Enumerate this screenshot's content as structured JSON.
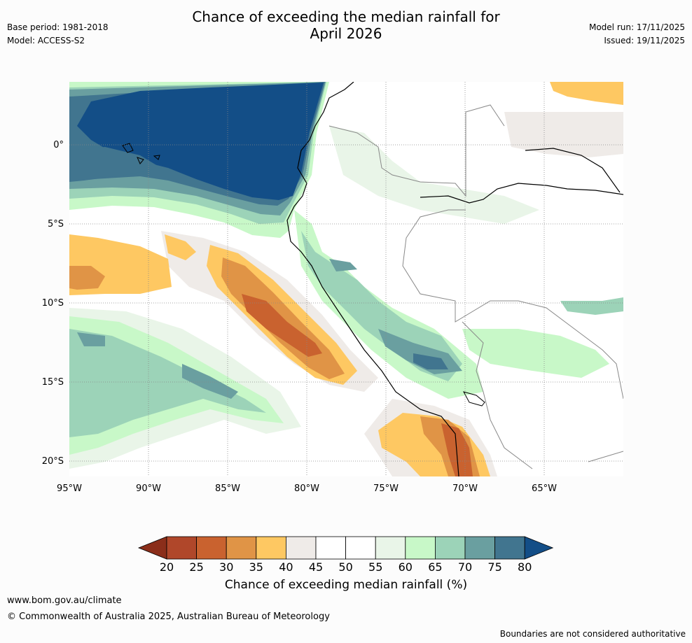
{
  "title_line1": "Chance of exceeding the median rainfall for",
  "title_line2": "April 2026",
  "base_period": "Base period: 1981-2018",
  "model": "Model: ACCESS-S2",
  "model_run": "Model run: 17/11/2025",
  "issued": "Issued: 19/11/2025",
  "map": {
    "lon_labels": [
      "95°W",
      "90°W",
      "85°W",
      "80°W",
      "75°W",
      "70°W",
      "65°W"
    ],
    "lat_labels": [
      "0°",
      "5°S",
      "10°S",
      "15°S",
      "20°S"
    ]
  },
  "colorbar": {
    "ticks": [
      "20",
      "25",
      "30",
      "35",
      "40",
      "45",
      "50",
      "55",
      "60",
      "65",
      "70",
      "75",
      "80"
    ],
    "colors": [
      "#8b2e1a",
      "#b0472a",
      "#c9622f",
      "#e09446",
      "#fec862",
      "#efebe8",
      "#ffffff",
      "#ffffff",
      "#e9f5e8",
      "#c8f8c8",
      "#9cd3b8",
      "#6a9fa0",
      "#41758f",
      "#134e87"
    ],
    "label": "Chance of exceeding median rainfall (%)"
  },
  "footer": {
    "url": "www.bom.gov.au/climate",
    "copyright": "© Commonwealth of Australia 2025, Australian Bureau of Meteorology",
    "disclaimer": "Boundaries are not considered authoritative"
  }
}
